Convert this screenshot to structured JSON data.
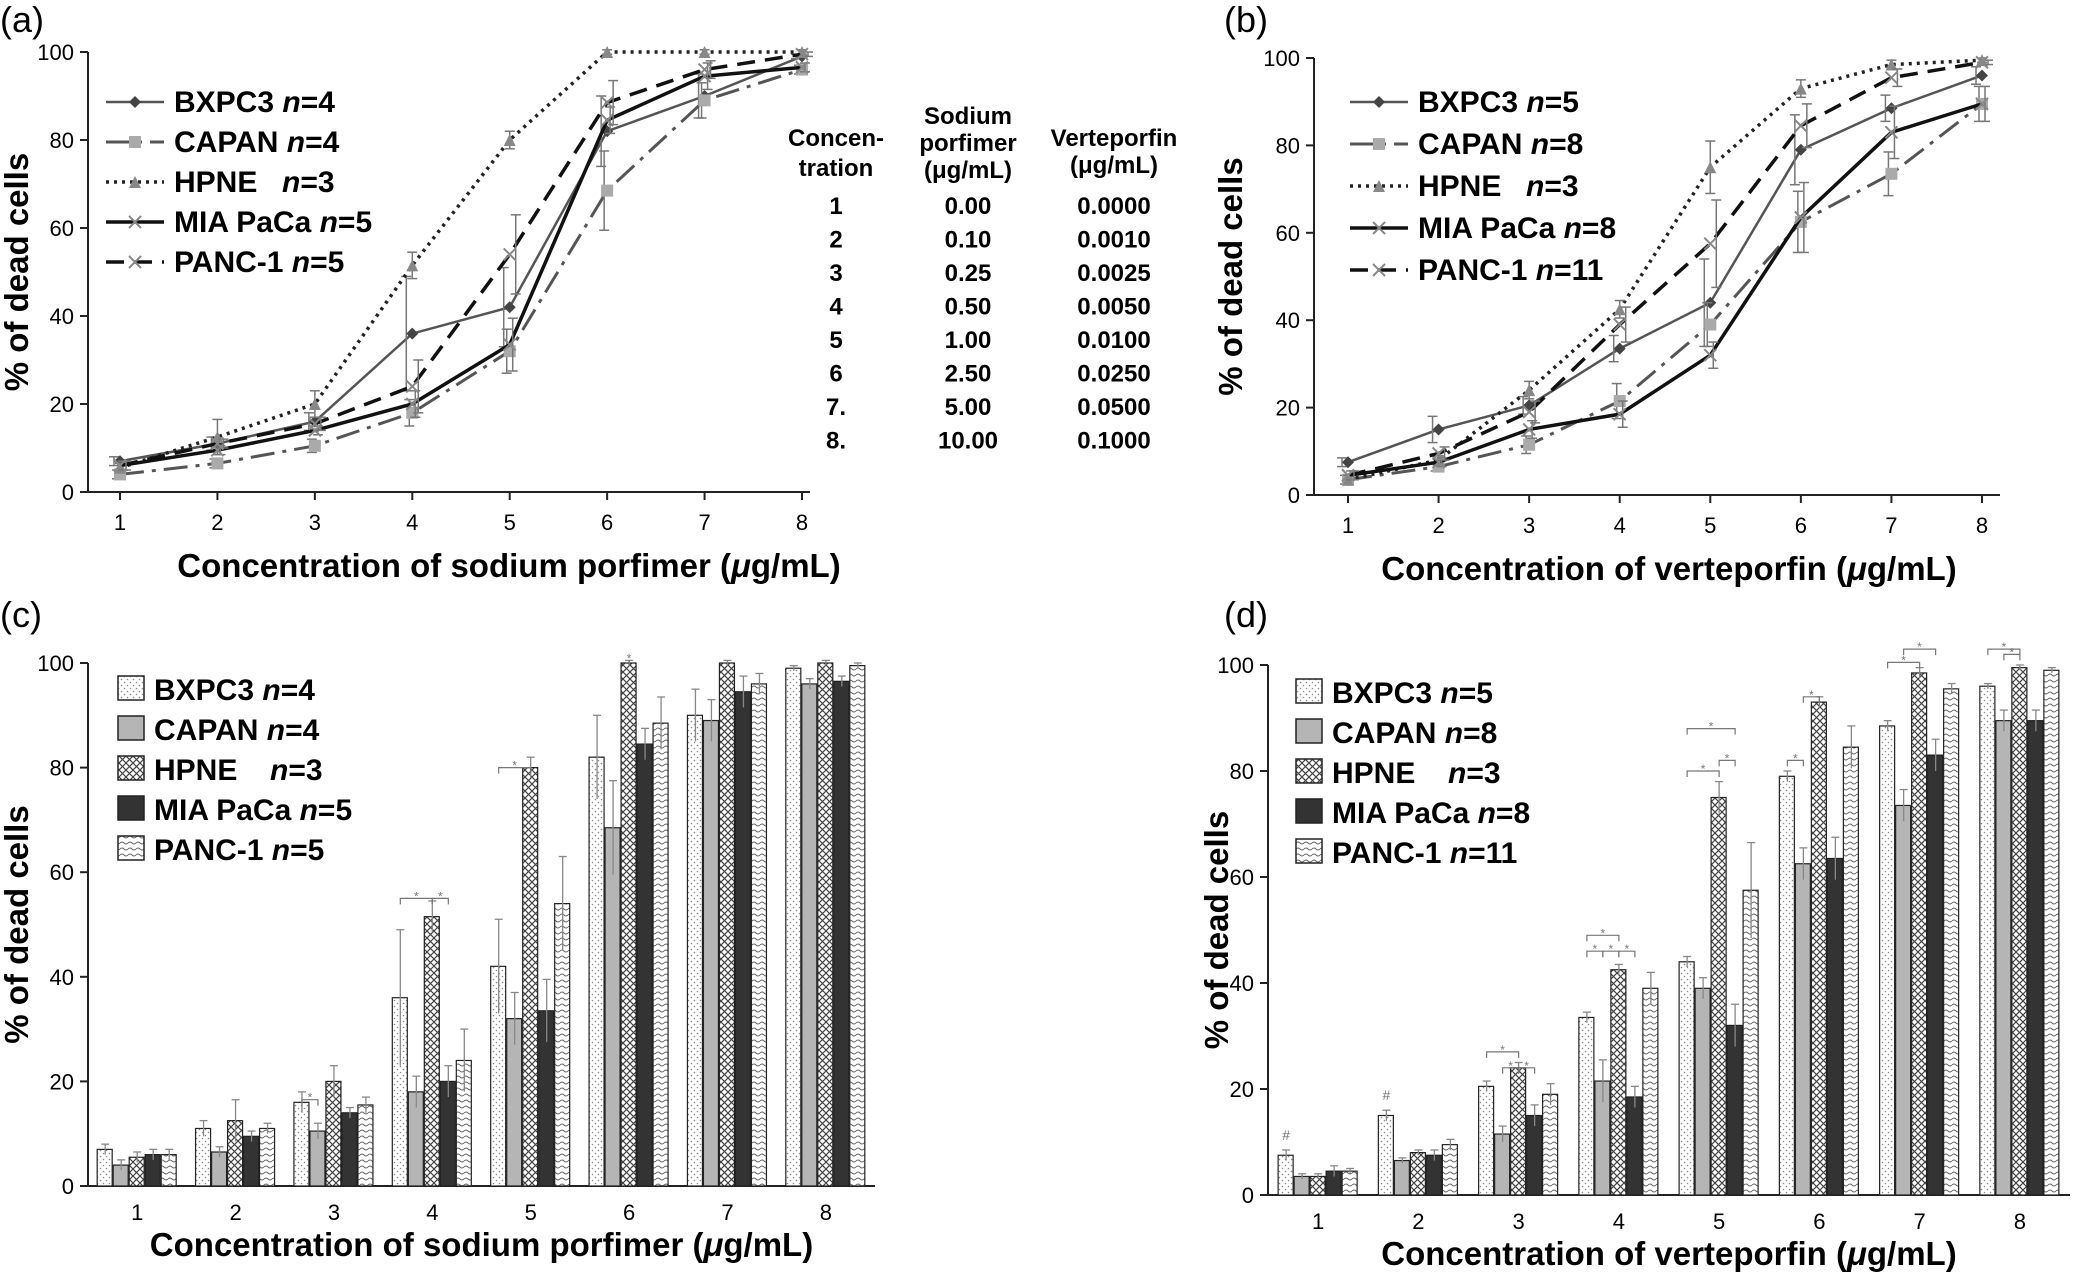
{
  "chart_data": [
    {
      "panel": "(a)",
      "type": "line",
      "xlabel": "Concentration of sodium porfimer (μg/mL)",
      "ylabel": "% of dead cells",
      "categories": [
        "1",
        "2",
        "3",
        "4",
        "5",
        "6",
        "7",
        "8"
      ],
      "ylim": [
        0,
        100
      ],
      "yticks": [
        "0",
        "20",
        "40",
        "60",
        "80",
        "100"
      ],
      "grid": false,
      "legend_position": "top-left",
      "series": [
        {
          "name": "BXPC3",
          "n": "n=4",
          "values": [
            7,
            11,
            16,
            36,
            42,
            82,
            90,
            99
          ],
          "err": [
            1,
            1.5,
            2,
            13,
            9,
            8,
            5,
            0.5
          ]
        },
        {
          "name": "CAPAN",
          "n": "n=4",
          "values": [
            4,
            6.5,
            10.5,
            18,
            32,
            68.5,
            89,
            96
          ],
          "err": [
            1,
            1,
            1.5,
            3,
            5,
            9,
            4,
            1
          ]
        },
        {
          "name": "HPNE",
          "n": "n=3",
          "values": [
            5.5,
            12.5,
            20,
            51.5,
            80,
            100,
            100,
            100
          ],
          "err": [
            1,
            4,
            3,
            3,
            2,
            0.5,
            0.5,
            0.5
          ]
        },
        {
          "name": "MIA PaCa",
          "n": "n=5",
          "values": [
            6,
            9.5,
            14,
            20,
            33.5,
            84.5,
            94.5,
            96.5
          ],
          "err": [
            1,
            1,
            1,
            3,
            6,
            3,
            3,
            1
          ]
        },
        {
          "name": "PANC-1",
          "n": "n=5",
          "values": [
            6,
            11,
            15.5,
            24,
            54,
            88.5,
            96,
            99.5
          ],
          "err": [
            1,
            1,
            1.5,
            6,
            9,
            5,
            2,
            0.5
          ]
        }
      ],
      "table": {
        "headers": [
          "Concen-\ntration",
          "Sodium\nporfimer\n(μg/mL)",
          "Verteporfin\n(μg/mL)"
        ],
        "rows": [
          [
            "1",
            "0.00",
            "0.0000"
          ],
          [
            "2",
            "0.10",
            "0.0010"
          ],
          [
            "3",
            "0.25",
            "0.0025"
          ],
          [
            "4",
            "0.50",
            "0.0050"
          ],
          [
            "5",
            "1.00",
            "0.0100"
          ],
          [
            "6",
            "2.50",
            "0.0250"
          ],
          [
            "7.",
            "5.00",
            "0.0500"
          ],
          [
            "8.",
            "10.00",
            "0.1000"
          ]
        ]
      }
    },
    {
      "panel": "(b)",
      "type": "line",
      "xlabel": "Concentration of verteporfin (μg/mL)",
      "ylabel": "% of dead cells",
      "categories": [
        "1",
        "2",
        "3",
        "4",
        "5",
        "6",
        "7",
        "8"
      ],
      "ylim": [
        0,
        100
      ],
      "yticks": [
        "0",
        "20",
        "40",
        "60",
        "80",
        "100"
      ],
      "grid": false,
      "legend_position": "top-left",
      "series": [
        {
          "name": "BXPC3",
          "n": "n=5",
          "values": [
            7.5,
            15,
            20.5,
            33.5,
            44,
            79,
            88.5,
            96
          ],
          "err": [
            1,
            3,
            2,
            3,
            10,
            8,
            3,
            2
          ]
        },
        {
          "name": "CAPAN",
          "n": "n=8",
          "values": [
            3.5,
            6.5,
            11.5,
            21.5,
            39,
            62.5,
            73.5,
            89.5
          ],
          "err": [
            1,
            1,
            2,
            4,
            5,
            7,
            5,
            4
          ]
        },
        {
          "name": "HPNE",
          "n": "n=3",
          "values": [
            3.5,
            8,
            24,
            42.5,
            75,
            93,
            98.5,
            99.5
          ],
          "err": [
            1,
            1,
            2,
            2,
            6,
            2,
            1,
            0.5
          ]
        },
        {
          "name": "MIA PaCa",
          "n": "n=8",
          "values": [
            4.5,
            7.5,
            15,
            18.5,
            32,
            63.5,
            83,
            89.5
          ],
          "err": [
            1,
            1,
            2,
            3,
            3,
            8,
            6,
            4
          ]
        },
        {
          "name": "PANC-1",
          "n": "n=11",
          "values": [
            4.5,
            9.5,
            19,
            39,
            57.5,
            84.5,
            95.5,
            99
          ],
          "err": [
            1,
            1.5,
            2.5,
            4,
            10,
            5,
            2,
            0.5
          ]
        }
      ]
    },
    {
      "panel": "(c)",
      "type": "bar",
      "xlabel": "Concentration of sodium porfimer (μg/mL)",
      "ylabel": "% of dead cells",
      "categories": [
        "1",
        "2",
        "3",
        "4",
        "5",
        "6",
        "7",
        "8"
      ],
      "ylim": [
        0,
        100
      ],
      "yticks": [
        "0",
        "20",
        "40",
        "60",
        "80",
        "100"
      ],
      "grid": false,
      "legend_position": "top-left",
      "series": [
        {
          "name": "BXPC3",
          "n": "n=4",
          "values": [
            7,
            11,
            16,
            36,
            42,
            82,
            90,
            99
          ],
          "err": [
            1,
            1.5,
            2,
            13,
            9,
            8,
            5,
            0.5
          ]
        },
        {
          "name": "CAPAN",
          "n": "n=4",
          "values": [
            4,
            6.5,
            10.5,
            18,
            32,
            68.5,
            89,
            96
          ],
          "err": [
            1,
            1,
            1.5,
            3,
            5,
            9,
            4,
            1
          ]
        },
        {
          "name": "HPNE",
          "n": "n=3",
          "values": [
            5.5,
            12.5,
            20,
            51.5,
            80,
            100,
            100,
            100
          ],
          "err": [
            1,
            4,
            3,
            3,
            2,
            0.5,
            0.5,
            0.5
          ]
        },
        {
          "name": "MIA PaCa",
          "n": "n=5",
          "values": [
            6,
            9.5,
            14,
            20,
            33.5,
            84.5,
            94.5,
            96.5
          ],
          "err": [
            1,
            1,
            1,
            3,
            6,
            3,
            3,
            1
          ]
        },
        {
          "name": "PANC-1",
          "n": "n=5",
          "values": [
            6,
            11,
            15.5,
            24,
            54,
            88.5,
            96,
            99.5
          ],
          "err": [
            1,
            1,
            1.5,
            6,
            9,
            5,
            2,
            0.5
          ]
        }
      ]
    },
    {
      "panel": "(d)",
      "type": "bar",
      "xlabel": "Concentration of verteporfin (μg/mL)",
      "ylabel": "% of dead cells",
      "categories": [
        "1",
        "2",
        "3",
        "4",
        "5",
        "6",
        "7",
        "8"
      ],
      "ylim": [
        0,
        100
      ],
      "yticks": [
        "0",
        "20",
        "40",
        "60",
        "80",
        "100"
      ],
      "grid": false,
      "legend_position": "top-left",
      "series": [
        {
          "name": "BXPC3",
          "n": "n=5",
          "values": [
            7.5,
            15,
            20.5,
            33.5,
            44,
            79,
            88.5,
            96
          ],
          "err": [
            1,
            1,
            1,
            1,
            1,
            1,
            1,
            0.5
          ]
        },
        {
          "name": "CAPAN",
          "n": "n=8",
          "values": [
            3.5,
            6.5,
            11.5,
            21.5,
            39,
            62.5,
            73.5,
            89.5
          ],
          "err": [
            0.5,
            0.5,
            1.5,
            4,
            2,
            3,
            3,
            2
          ]
        },
        {
          "name": "HPNE",
          "n": "n=3",
          "values": [
            3.5,
            8,
            24,
            42.5,
            75,
            93,
            98.5,
            99.5
          ],
          "err": [
            0.5,
            0.5,
            1,
            1,
            3,
            1,
            1,
            0.5
          ]
        },
        {
          "name": "MIA PaCa",
          "n": "n=8",
          "values": [
            4.5,
            7.5,
            15,
            18.5,
            32,
            63.5,
            83,
            89.5
          ],
          "err": [
            1,
            1,
            2,
            2,
            4,
            4,
            3,
            2
          ]
        },
        {
          "name": "PANC-1",
          "n": "n=11",
          "values": [
            4.5,
            9.5,
            19,
            39,
            57.5,
            84.5,
            95.5,
            99
          ],
          "err": [
            0.5,
            1,
            2,
            3,
            9,
            4,
            1,
            0.5
          ]
        }
      ],
      "annotations": [
        "#",
        "#"
      ]
    }
  ],
  "colors": {
    "BXPC3": "#555555",
    "CAPAN": "#aaaaaa",
    "HPNE": "#777777",
    "MIA PaCa": "#111111",
    "PANC-1": "#111111",
    "bar_outline": "#222222"
  }
}
